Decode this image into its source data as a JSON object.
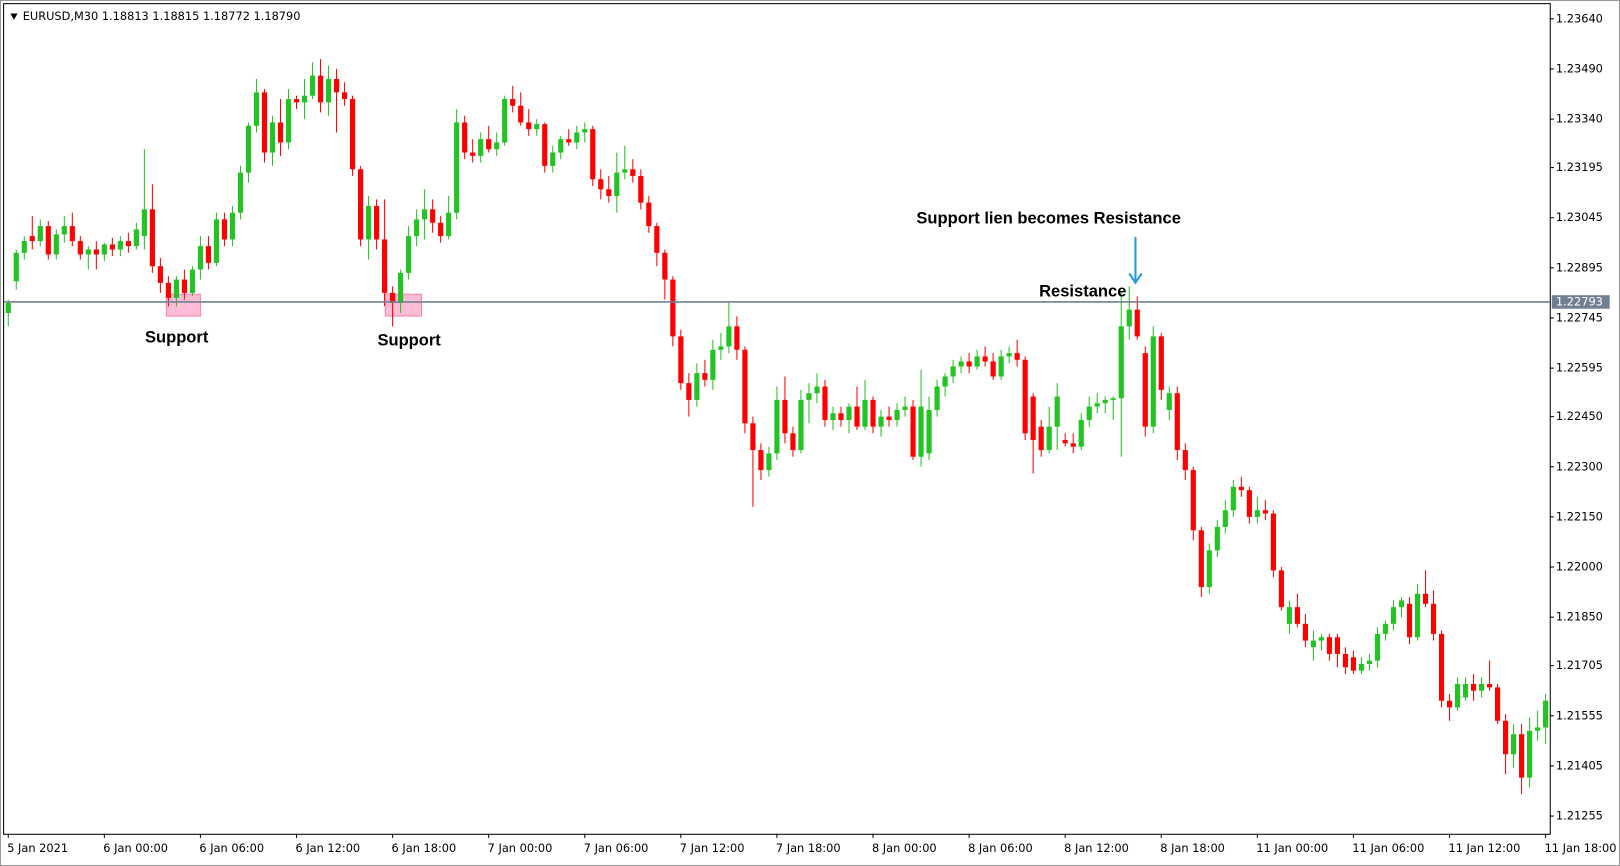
{
  "chart_data": {
    "type": "candlestick",
    "header": "EURUSD,M30  1.18813 1.18815 1.18772 1.18790",
    "up_color": "#22c322",
    "down_color": "#ff0000",
    "price_line": 1.22793,
    "price_line_color": "#708090",
    "ylim": [
      1.21202,
      1.23687
    ],
    "yticks": [
      {
        "value": 1.2364,
        "label": "1.23640"
      },
      {
        "value": 1.2349,
        "label": "1.23490"
      },
      {
        "value": 1.2334,
        "label": "1.23340"
      },
      1.23195,
      1.23045,
      1.22895,
      1.22745,
      1.22595,
      {
        "value": 1.2245,
        "label": "1.22450"
      },
      {
        "value": 1.223,
        "label": "1.22300"
      },
      {
        "value": 1.2215,
        "label": "1.22150"
      },
      {
        "value": 1.22,
        "label": "1.22000"
      },
      {
        "value": 1.2185,
        "label": "1.21850"
      },
      1.21705,
      1.21555,
      1.21405,
      1.21255
    ],
    "xticks": [
      {
        "value": 0,
        "label": "5 Jan 2021"
      },
      {
        "value": 12,
        "label": "6 Jan 00:00"
      },
      {
        "value": 24,
        "label": "6 Jan 06:00"
      },
      {
        "value": 36,
        "label": "6 Jan 12:00"
      },
      {
        "value": 48,
        "label": "6 Jan 18:00"
      },
      {
        "value": 60,
        "label": "7 Jan 00:00"
      },
      {
        "value": 72,
        "label": "7 Jan 06:00"
      },
      {
        "value": 84,
        "label": "7 Jan 12:00"
      },
      {
        "value": 96,
        "label": "7 Jan 18:00"
      },
      {
        "value": 108,
        "label": "8 Jan 00:00"
      },
      {
        "value": 120,
        "label": "8 Jan 06:00"
      },
      {
        "value": 132,
        "label": "8 Jan 12:00"
      },
      {
        "value": 144,
        "label": "8 Jan 18:00"
      },
      {
        "value": 156,
        "label": "11 Jan 00:00"
      },
      {
        "value": 168,
        "label": "11 Jan 06:00"
      },
      {
        "value": 180,
        "label": "11 Jan 12:00"
      },
      {
        "value": 192,
        "label": "11 Jan 18:00"
      }
    ],
    "annotations": [
      "Support",
      "Support",
      "Support lien becomes Resistance",
      "Resistance"
    ],
    "candles": [
      [
        1.2276,
        1.228,
        1.2272,
        1.2279
      ],
      [
        1.22855,
        1.2295,
        1.2283,
        1.2294
      ],
      [
        1.2294,
        1.2299,
        1.2292,
        1.22975
      ],
      [
        1.2299,
        1.2305,
        1.2295,
        1.22975
      ],
      [
        1.22975,
        1.2304,
        1.2296,
        1.2302
      ],
      [
        1.2302,
        1.23035,
        1.2292,
        1.22935
      ],
      [
        1.22935,
        1.2301,
        1.2292,
        1.22995
      ],
      [
        1.22995,
        1.2305,
        1.2297,
        1.2302
      ],
      [
        1.2302,
        1.2306,
        1.2296,
        1.22975
      ],
      [
        1.22975,
        1.2299,
        1.2292,
        1.22935
      ],
      [
        1.22935,
        1.2296,
        1.2289,
        1.2295
      ],
      [
        1.2295,
        1.22975,
        1.2289,
        1.22935
      ],
      [
        1.22935,
        1.2297,
        1.22915,
        1.22965
      ],
      [
        1.22965,
        1.22985,
        1.2293,
        1.2295
      ],
      [
        1.2295,
        1.2299,
        1.2293,
        1.22975
      ],
      [
        1.22975,
        1.23,
        1.2294,
        1.2296
      ],
      [
        1.2296,
        1.2303,
        1.2295,
        1.2301
      ],
      [
        1.2299,
        1.2325,
        1.2295,
        1.2307
      ],
      [
        1.2307,
        1.23145,
        1.2288,
        1.229
      ],
      [
        1.229,
        1.22925,
        1.2282,
        1.2285
      ],
      [
        1.2285,
        1.2287,
        1.2278,
        1.22805
      ],
      [
        1.22805,
        1.2287,
        1.2278,
        1.2286
      ],
      [
        1.2286,
        1.2289,
        1.228,
        1.2282
      ],
      [
        1.2282,
        1.229,
        1.2281,
        1.2289
      ],
      [
        1.2289,
        1.2299,
        1.2286,
        1.2296
      ],
      [
        1.2296,
        1.2299,
        1.2289,
        1.2291
      ],
      [
        1.2291,
        1.2306,
        1.229,
        1.2304
      ],
      [
        1.2304,
        1.2306,
        1.2296,
        1.2298
      ],
      [
        1.2298,
        1.2308,
        1.2296,
        1.2306
      ],
      [
        1.2306,
        1.232,
        1.2304,
        1.2318
      ],
      [
        1.2318,
        1.2333,
        1.2315,
        1.2332
      ],
      [
        1.2332,
        1.2346,
        1.233,
        1.2342
      ],
      [
        1.2342,
        1.2343,
        1.2321,
        1.2324
      ],
      [
        1.2324,
        1.2335,
        1.232,
        1.2333
      ],
      [
        1.2333,
        1.234,
        1.2323,
        1.2327
      ],
      [
        1.2327,
        1.2343,
        1.2325,
        1.234
      ],
      [
        1.234,
        1.2341,
        1.2337,
        1.2339
      ],
      [
        1.2339,
        1.2346,
        1.2334,
        1.2341
      ],
      [
        1.2341,
        1.2351,
        1.234,
        1.2347
      ],
      [
        1.2347,
        1.2352,
        1.2336,
        1.2339
      ],
      [
        1.2339,
        1.235,
        1.2335,
        1.2346
      ],
      [
        1.2346,
        1.2349,
        1.233,
        1.2342
      ],
      [
        1.2342,
        1.2345,
        1.2338,
        1.234
      ],
      [
        1.234,
        1.2341,
        1.2317,
        1.2319
      ],
      [
        1.2319,
        1.232,
        1.2296,
        1.2298
      ],
      [
        1.2298,
        1.2311,
        1.2292,
        1.2308
      ],
      [
        1.2308,
        1.231,
        1.2295,
        1.2298
      ],
      [
        1.2298,
        1.231,
        1.2278,
        1.2282
      ],
      [
        1.2282,
        1.2284,
        1.2272,
        1.2279
      ],
      [
        1.2279,
        1.2289,
        1.2276,
        1.2288
      ],
      [
        1.2288,
        1.2302,
        1.2286,
        1.2299
      ],
      [
        1.2299,
        1.2307,
        1.2296,
        1.2304
      ],
      [
        1.2304,
        1.2313,
        1.2298,
        1.2307
      ],
      [
        1.2307,
        1.231,
        1.23,
        1.2303
      ],
      [
        1.2303,
        1.2305,
        1.2297,
        1.2299
      ],
      [
        1.2299,
        1.2311,
        1.2298,
        1.2306
      ],
      [
        1.2306,
        1.2337,
        1.2304,
        1.2333
      ],
      [
        1.2333,
        1.2335,
        1.2322,
        1.2324
      ],
      [
        1.2324,
        1.2328,
        1.2321,
        1.2323
      ],
      [
        1.2323,
        1.233,
        1.2321,
        1.2328
      ],
      [
        1.2328,
        1.2332,
        1.2324,
        1.2325
      ],
      [
        1.2325,
        1.233,
        1.2323,
        1.2327
      ],
      [
        1.2327,
        1.2341,
        1.2326,
        1.234
      ],
      [
        1.234,
        1.2344,
        1.2336,
        1.2338
      ],
      [
        1.2338,
        1.2342,
        1.2332,
        1.2333
      ],
      [
        1.2333,
        1.2337,
        1.2329,
        1.2331
      ],
      [
        1.2331,
        1.2334,
        1.2329,
        1.23325
      ],
      [
        1.23325,
        1.2333,
        1.2318,
        1.232
      ],
      [
        1.232,
        1.2326,
        1.2318,
        1.2324
      ],
      [
        1.2324,
        1.2329,
        1.2322,
        1.2328
      ],
      [
        1.2328,
        1.2331,
        1.2326,
        1.2327
      ],
      [
        1.2327,
        1.2332,
        1.2325,
        1.233
      ],
      [
        1.233,
        1.2333,
        1.2327,
        1.2331
      ],
      [
        1.2331,
        1.2332,
        1.2314,
        1.2316
      ],
      [
        1.2316,
        1.2319,
        1.231,
        1.2313
      ],
      [
        1.2313,
        1.2317,
        1.2309,
        1.2311
      ],
      [
        1.2311,
        1.2324,
        1.2306,
        1.2318
      ],
      [
        1.2318,
        1.2326,
        1.2316,
        1.2319
      ],
      [
        1.2319,
        1.2322,
        1.2315,
        1.2317
      ],
      [
        1.2317,
        1.2319,
        1.2307,
        1.2309
      ],
      [
        1.2309,
        1.2311,
        1.23,
        1.2302
      ],
      [
        1.2302,
        1.2303,
        1.229,
        1.2294
      ],
      [
        1.2294,
        1.2295,
        1.228,
        1.2286
      ],
      [
        1.2286,
        1.2287,
        1.2266,
        1.2269
      ],
      [
        1.2269,
        1.2271,
        1.2253,
        1.2255
      ],
      [
        1.2255,
        1.2258,
        1.2245,
        1.225
      ],
      [
        1.225,
        1.2261,
        1.2248,
        1.2258
      ],
      [
        1.2258,
        1.2262,
        1.2254,
        1.2256
      ],
      [
        1.2256,
        1.2268,
        1.2253,
        1.2265
      ],
      [
        1.2265,
        1.227,
        1.2262,
        1.2266
      ],
      [
        1.2266,
        1.2279,
        1.2264,
        1.2272
      ],
      [
        1.2272,
        1.2275,
        1.2262,
        1.2265
      ],
      [
        1.2265,
        1.2266,
        1.224,
        1.2243
      ],
      [
        1.2243,
        1.2245,
        1.2218,
        1.2235
      ],
      [
        1.2235,
        1.2237,
        1.2226,
        1.2229
      ],
      [
        1.2229,
        1.2236,
        1.2227,
        1.2234
      ],
      [
        1.2234,
        1.2254,
        1.2232,
        1.225
      ],
      [
        1.225,
        1.2257,
        1.2237,
        1.224
      ],
      [
        1.224,
        1.2242,
        1.2233,
        1.2235
      ],
      [
        1.2235,
        1.2253,
        1.2234,
        1.225
      ],
      [
        1.225,
        1.2255,
        1.2243,
        1.2252
      ],
      [
        1.2252,
        1.2258,
        1.2249,
        1.2254
      ],
      [
        1.2254,
        1.2256,
        1.2242,
        1.2244
      ],
      [
        1.2244,
        1.2248,
        1.2241,
        1.2246
      ],
      [
        1.2246,
        1.2248,
        1.2242,
        1.2244
      ],
      [
        1.2244,
        1.2249,
        1.224,
        1.2248
      ],
      [
        1.2248,
        1.2254,
        1.2241,
        1.2242
      ],
      [
        1.2242,
        1.2256,
        1.2241,
        1.225
      ],
      [
        1.225,
        1.2251,
        1.224,
        1.2242
      ],
      [
        1.2242,
        1.2247,
        1.2239,
        1.2245
      ],
      [
        1.2245,
        1.2248,
        1.2242,
        1.2244
      ],
      [
        1.2244,
        1.2249,
        1.2242,
        1.2247
      ],
      [
        1.2247,
        1.2251,
        1.2245,
        1.2248
      ],
      [
        1.2248,
        1.225,
        1.2232,
        1.2233
      ],
      [
        1.2233,
        1.2259,
        1.223,
        1.2248
      ],
      [
        1.2234,
        1.2251,
        1.2232,
        1.2247
      ],
      [
        1.2247,
        1.2256,
        1.2245,
        1.2254
      ],
      [
        1.2254,
        1.2258,
        1.2251,
        1.2257
      ],
      [
        1.2257,
        1.2262,
        1.2255,
        1.226
      ],
      [
        1.226,
        1.2263,
        1.2258,
        1.22615
      ],
      [
        1.22615,
        1.2264,
        1.2258,
        1.226
      ],
      [
        1.226,
        1.2265,
        1.2259,
        1.2263
      ],
      [
        1.2263,
        1.2266,
        1.226,
        1.22615
      ],
      [
        1.22615,
        1.2264,
        1.2256,
        1.2257
      ],
      [
        1.2257,
        1.2265,
        1.2256,
        1.2263
      ],
      [
        1.2263,
        1.2266,
        1.2261,
        1.2264
      ],
      [
        1.2264,
        1.2268,
        1.226,
        1.2262
      ],
      [
        1.2262,
        1.2263,
        1.2238,
        1.224
      ],
      [
        1.2251,
        1.2252,
        1.2228,
        1.2238
      ],
      [
        1.2242,
        1.2244,
        1.2233,
        1.2235
      ],
      [
        1.2235,
        1.2248,
        1.2234,
        1.2242
      ],
      [
        1.2242,
        1.2255,
        1.2235,
        1.2251
      ],
      [
        1.2238,
        1.224,
        1.2236,
        1.2237
      ],
      [
        1.2237,
        1.224,
        1.2234,
        1.2236
      ],
      [
        1.2236,
        1.2246,
        1.2235,
        1.2244
      ],
      [
        1.2244,
        1.2251,
        1.2242,
        1.2248
      ],
      [
        1.2248,
        1.2252,
        1.2246,
        1.2249
      ],
      [
        1.2249,
        1.2251,
        1.2246,
        1.225
      ],
      [
        1.225,
        1.2251,
        1.2244,
        1.22505
      ],
      [
        1.22505,
        1.2282,
        1.2233,
        1.2272
      ],
      [
        1.2272,
        1.2284,
        1.2268,
        1.2277
      ],
      [
        1.2277,
        1.2281,
        1.2268,
        1.2269
      ],
      [
        1.2264,
        1.2266,
        1.2239,
        1.2242
      ],
      [
        1.2242,
        1.2272,
        1.224,
        1.2269
      ],
      [
        1.2269,
        1.227,
        1.225,
        1.2253
      ],
      [
        1.2247,
        1.2254,
        1.2244,
        1.2252
      ],
      [
        1.2252,
        1.2254,
        1.2232,
        1.2235
      ],
      [
        1.2235,
        1.2237,
        1.2226,
        1.2229
      ],
      [
        1.2229,
        1.223,
        1.2208,
        1.2211
      ],
      [
        1.2211,
        1.2212,
        1.2191,
        1.2194
      ],
      [
        1.2194,
        1.2207,
        1.2192,
        1.2205
      ],
      [
        1.2205,
        1.2214,
        1.2203,
        1.2212
      ],
      [
        1.2212,
        1.222,
        1.221,
        1.2217
      ],
      [
        1.2217,
        1.2226,
        1.2215,
        1.2224
      ],
      [
        1.2224,
        1.2227,
        1.2221,
        1.2223
      ],
      [
        1.2223,
        1.2224,
        1.2213,
        1.2215
      ],
      [
        1.2215,
        1.2221,
        1.2213,
        1.2217
      ],
      [
        1.2217,
        1.222,
        1.2214,
        1.2216
      ],
      [
        1.2216,
        1.2217,
        1.2197,
        1.2199
      ],
      [
        1.2199,
        1.22,
        1.2187,
        1.2188
      ],
      [
        1.2183,
        1.219,
        1.218,
        1.2188
      ],
      [
        1.2188,
        1.2192,
        1.2182,
        1.2183
      ],
      [
        1.2183,
        1.2186,
        1.2176,
        1.2178
      ],
      [
        1.2176,
        1.2181,
        1.2172,
        1.2178
      ],
      [
        1.2178,
        1.218,
        1.2175,
        1.2179
      ],
      [
        1.2179,
        1.218,
        1.2172,
        1.2174
      ],
      [
        1.2179,
        1.218,
        1.217,
        1.2174
      ],
      [
        1.2174,
        1.2176,
        1.2168,
        1.217
      ],
      [
        1.2173,
        1.2175,
        1.2168,
        1.2169
      ],
      [
        1.2169,
        1.2173,
        1.2168,
        1.2171
      ],
      [
        1.2171,
        1.2174,
        1.2169,
        1.2172
      ],
      [
        1.2172,
        1.2182,
        1.217,
        1.218
      ],
      [
        1.218,
        1.2184,
        1.2178,
        1.2183
      ],
      [
        1.2183,
        1.219,
        1.2181,
        1.2188
      ],
      [
        1.2188,
        1.2191,
        1.2185,
        1.219
      ],
      [
        1.2189,
        1.2191,
        1.2177,
        1.2179
      ],
      [
        1.2179,
        1.2195,
        1.2178,
        1.2192
      ],
      [
        1.2192,
        1.2199,
        1.2188,
        1.2189
      ],
      [
        1.2189,
        1.2193,
        1.2178,
        1.218
      ],
      [
        1.218,
        1.2181,
        1.2158,
        1.216
      ],
      [
        1.216,
        1.2162,
        1.2154,
        1.2158
      ],
      [
        1.2158,
        1.2167,
        1.2157,
        1.2165
      ],
      [
        1.2161,
        1.2167,
        1.216,
        1.2165
      ],
      [
        1.2165,
        1.2168,
        1.216,
        1.2163
      ],
      [
        1.2163,
        1.2167,
        1.2161,
        1.2165
      ],
      [
        1.2165,
        1.2172,
        1.2163,
        1.2164
      ],
      [
        1.2164,
        1.2165,
        1.2153,
        1.2154
      ],
      [
        1.2154,
        1.2156,
        1.2138,
        1.2144
      ],
      [
        1.2144,
        1.2153,
        1.214,
        1.215
      ],
      [
        1.215,
        1.2153,
        1.2132,
        1.2137
      ],
      [
        1.2137,
        1.2155,
        1.2134,
        1.2151
      ],
      [
        1.2151,
        1.2157,
        1.2148,
        1.2152
      ],
      [
        1.2152,
        1.2162,
        1.2147,
        1.216
      ]
    ]
  }
}
